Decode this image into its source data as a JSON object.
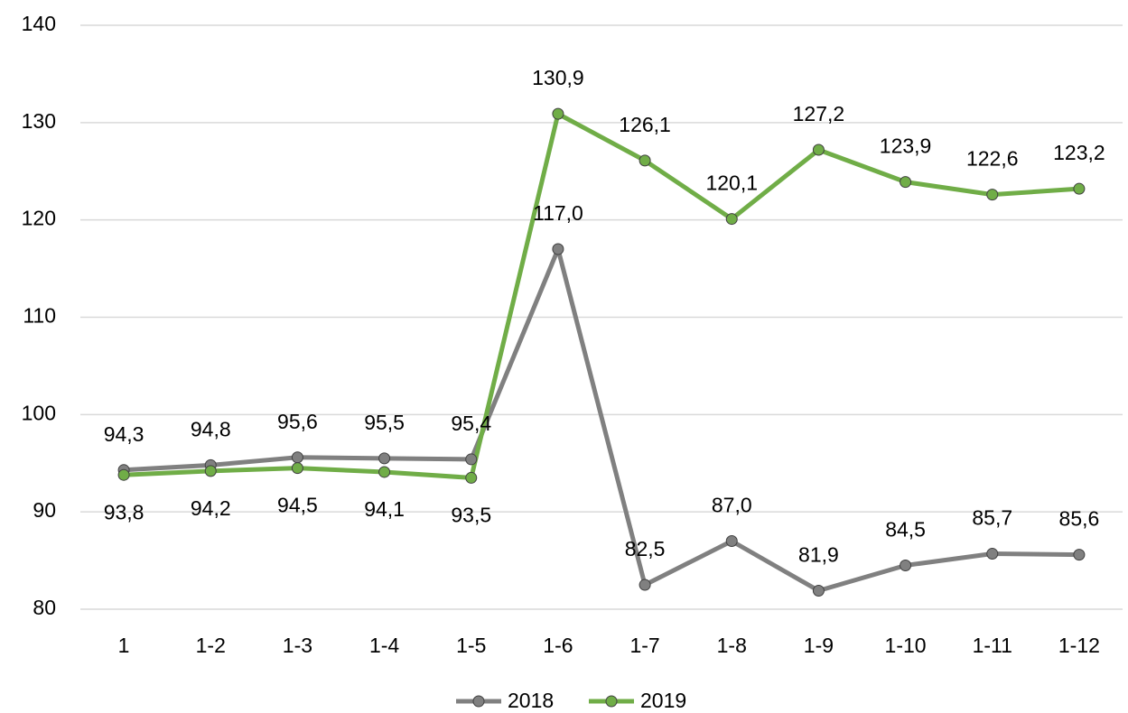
{
  "chart_data": {
    "type": "line",
    "categories": [
      "1",
      "1-2",
      "1-3",
      "1-4",
      "1-5",
      "1-6",
      "1-7",
      "1-8",
      "1-9",
      "1-10",
      "1-11",
      "1-12"
    ],
    "series": [
      {
        "name": "2018",
        "color": "#808080",
        "values": [
          94.3,
          94.8,
          95.6,
          95.5,
          95.4,
          117.0,
          82.5,
          87.0,
          81.9,
          84.5,
          85.7,
          85.6
        ],
        "value_labels": [
          "94,3",
          "94,8",
          "95,6",
          "95,5",
          "95,4",
          "117,0",
          "82,5",
          "87,0",
          "81,9",
          "84,5",
          "85,7",
          "85,6"
        ]
      },
      {
        "name": "2019",
        "color": "#70ad47",
        "values": [
          93.8,
          94.2,
          94.5,
          94.1,
          93.5,
          130.9,
          126.1,
          120.1,
          127.2,
          123.9,
          122.6,
          123.2
        ],
        "value_labels": [
          "93,8",
          "94,2",
          "94,5",
          "94,1",
          "93,5",
          "130,9",
          "126,1",
          "120,1",
          "127,2",
          "123,9",
          "122,6",
          "123,2"
        ]
      }
    ],
    "ylim": [
      80,
      140
    ],
    "yticks": [
      80,
      90,
      100,
      110,
      120,
      130,
      140
    ],
    "grid": true,
    "legend": "bottom"
  }
}
